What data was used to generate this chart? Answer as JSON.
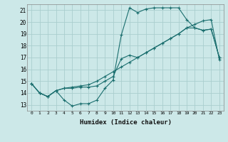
{
  "xlabel": "Humidex (Indice chaleur)",
  "background_color": "#cce8e8",
  "grid_color": "#aacece",
  "line_color": "#1a6e6e",
  "xlim": [
    -0.5,
    23.5
  ],
  "ylim": [
    12.5,
    21.5
  ],
  "xticks": [
    0,
    1,
    2,
    3,
    4,
    5,
    6,
    7,
    8,
    9,
    10,
    11,
    12,
    13,
    14,
    15,
    16,
    17,
    18,
    19,
    20,
    21,
    22,
    23
  ],
  "yticks": [
    13,
    14,
    15,
    16,
    17,
    18,
    19,
    20,
    21
  ],
  "line1_x": [
    0,
    1,
    2,
    3,
    4,
    5,
    6,
    7,
    8,
    9,
    10,
    11,
    12,
    13,
    14,
    15,
    16,
    17,
    18,
    19,
    20,
    21,
    22,
    23
  ],
  "line1_y": [
    14.8,
    14.0,
    13.7,
    14.2,
    13.4,
    12.9,
    13.1,
    13.1,
    13.4,
    14.4,
    15.1,
    18.9,
    21.2,
    20.8,
    21.1,
    21.2,
    21.2,
    21.2,
    21.2,
    20.2,
    19.5,
    19.3,
    19.4,
    17.0
  ],
  "line2_x": [
    0,
    1,
    2,
    3,
    4,
    5,
    6,
    7,
    8,
    9,
    10,
    11,
    12,
    13,
    14,
    15,
    16,
    17,
    18,
    19,
    20,
    21,
    22,
    23
  ],
  "line2_y": [
    14.8,
    14.0,
    13.7,
    14.2,
    14.4,
    14.4,
    14.5,
    14.5,
    14.6,
    15.0,
    15.4,
    16.9,
    17.2,
    17.0,
    17.4,
    17.8,
    18.2,
    18.6,
    19.0,
    19.5,
    19.5,
    19.3,
    19.4,
    17.0
  ],
  "line3_x": [
    0,
    1,
    2,
    3,
    4,
    5,
    6,
    7,
    8,
    9,
    10,
    11,
    12,
    13,
    14,
    15,
    16,
    17,
    18,
    19,
    20,
    21,
    22,
    23
  ],
  "line3_y": [
    14.8,
    14.0,
    13.7,
    14.2,
    14.4,
    14.5,
    14.6,
    14.7,
    15.0,
    15.4,
    15.8,
    16.2,
    16.6,
    17.0,
    17.4,
    17.8,
    18.2,
    18.6,
    19.0,
    19.5,
    19.8,
    20.1,
    20.2,
    16.8
  ]
}
